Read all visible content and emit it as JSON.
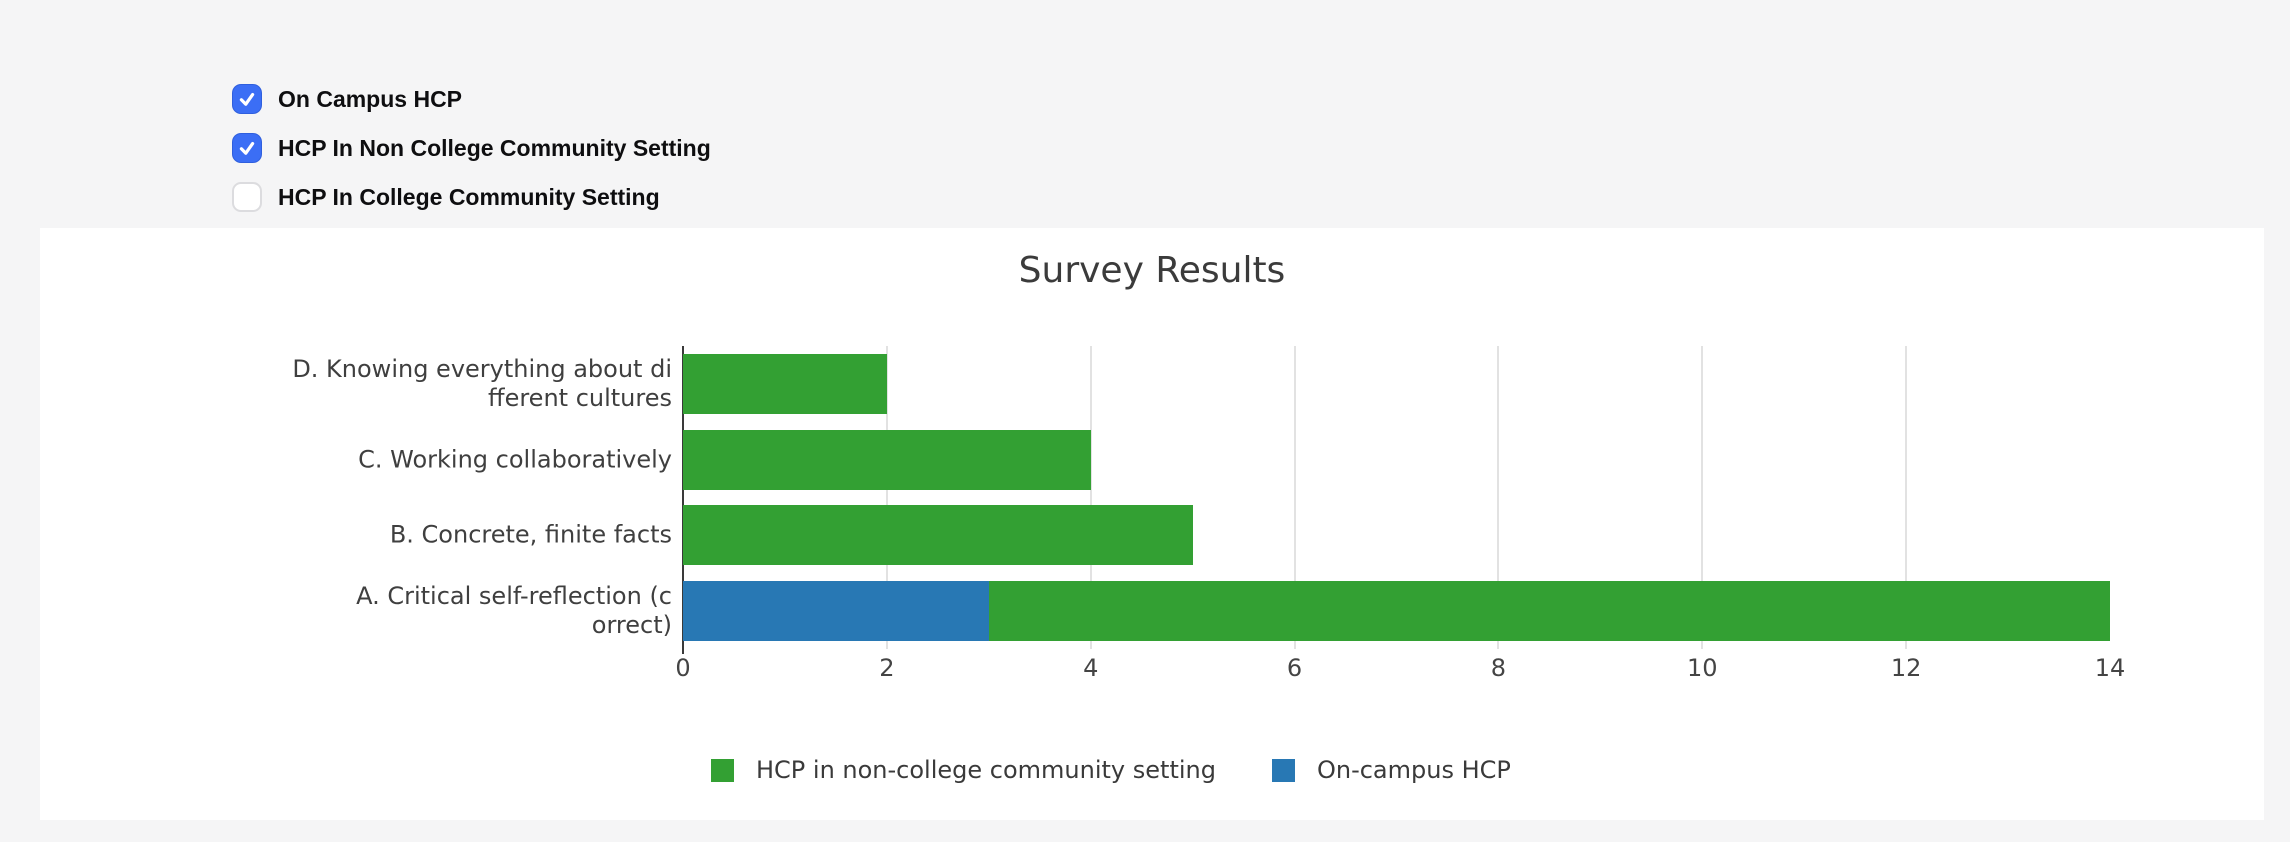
{
  "palette": {
    "page_bg": "#f5f5f6",
    "panel_bg": "#ffffff",
    "checkbox_checked_fill": "#3b6ef5",
    "checkbox_unchecked_border": "#dcdcdf",
    "bar_green": "#33a033",
    "bar_blue": "#2878b4",
    "grid_line": "#e2e2e2",
    "zero_line": "#3a3a3a",
    "title_text": "#3b3b3b",
    "axis_text": "#444444"
  },
  "controls": {
    "items": [
      {
        "label": "On Campus HCP",
        "checked": true
      },
      {
        "label": "HCP In Non College Community Setting",
        "checked": true
      },
      {
        "label": "HCP In College Community Setting",
        "checked": false
      }
    ]
  },
  "chart_data": {
    "type": "bar",
    "orientation": "horizontal",
    "stacked": true,
    "title": "Survey Results",
    "categories": [
      "D. Knowing everything about different cultures",
      "C. Working collaboratively",
      "B. Concrete, finite facts",
      "A. Critical self-reflection (correct)"
    ],
    "category_display_lines": [
      [
        "D. Knowing everything about di",
        "fferent cultures"
      ],
      [
        "C. Working collaboratively"
      ],
      [
        "B. Concrete, finite facts"
      ],
      [
        "A. Critical self-reflection (c",
        "orrect)"
      ]
    ],
    "series": [
      {
        "name": "On-campus HCP",
        "color": "#2878b4",
        "values": [
          0,
          0,
          0,
          3
        ]
      },
      {
        "name": "HCP in non-college community setting",
        "color": "#33a033",
        "values": [
          2,
          4,
          5,
          11
        ]
      }
    ],
    "row_totals": [
      2,
      4,
      5,
      14
    ],
    "x_range": [
      0,
      14
    ],
    "x_ticks": [
      0,
      2,
      4,
      6,
      8,
      10,
      12,
      14
    ],
    "gridlines": [
      2,
      4,
      6,
      8,
      10,
      12
    ],
    "grid": true,
    "legend_position": "bottom",
    "legend": [
      {
        "label": "HCP in non-college community setting",
        "color": "#33a033"
      },
      {
        "label": "On-campus HCP",
        "color": "#2878b4"
      }
    ]
  }
}
